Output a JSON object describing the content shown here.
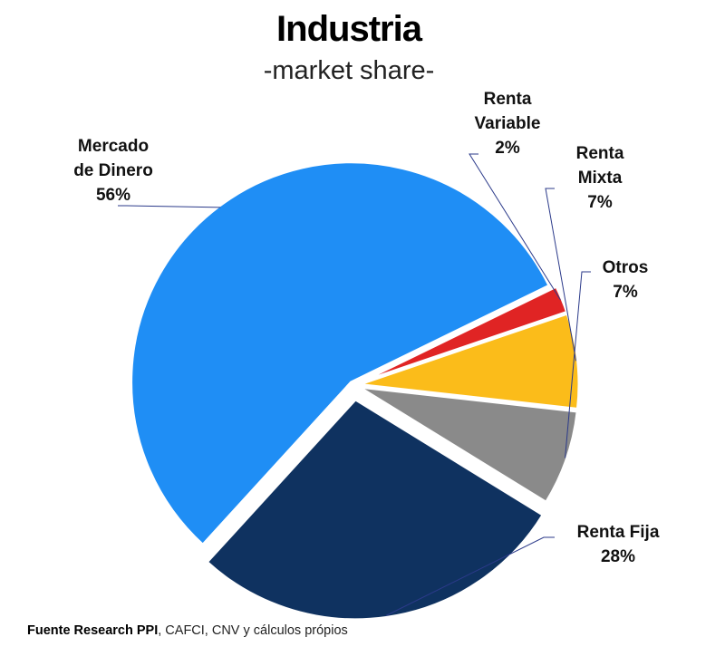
{
  "chart_data": {
    "type": "pie",
    "title": "Industria",
    "subtitle": "-market share-",
    "slices": [
      {
        "name": "Mercado de Dinero",
        "label_lines": [
          "Mercado",
          "de Dinero"
        ],
        "value": 56,
        "value_label": "56%",
        "color": "#1f8ef5",
        "explode": 4
      },
      {
        "name": "Renta Variable",
        "label_lines": [
          "Renta",
          "Variable"
        ],
        "value": 2,
        "value_label": "2%",
        "color": "#e02424",
        "explode": 6
      },
      {
        "name": "Renta Mixta",
        "label_lines": [
          "Renta",
          "Mixta"
        ],
        "value": 7,
        "value_label": "7%",
        "color": "#fbbc1a",
        "explode": 6
      },
      {
        "name": "Otros",
        "label_lines": [
          "Otros"
        ],
        "value": 7,
        "value_label": "7%",
        "color": "#8a8a8a",
        "explode": 6
      },
      {
        "name": "Renta Fija",
        "label_lines": [
          "Renta Fija"
        ],
        "value": 28,
        "value_label": "28%",
        "color": "#0f3260",
        "explode": 16
      }
    ],
    "legend": "none"
  },
  "footer": {
    "source_bold": "Fuente Research PPI",
    "source_rest": ", CAFCI, CNV y cálculos própios"
  }
}
